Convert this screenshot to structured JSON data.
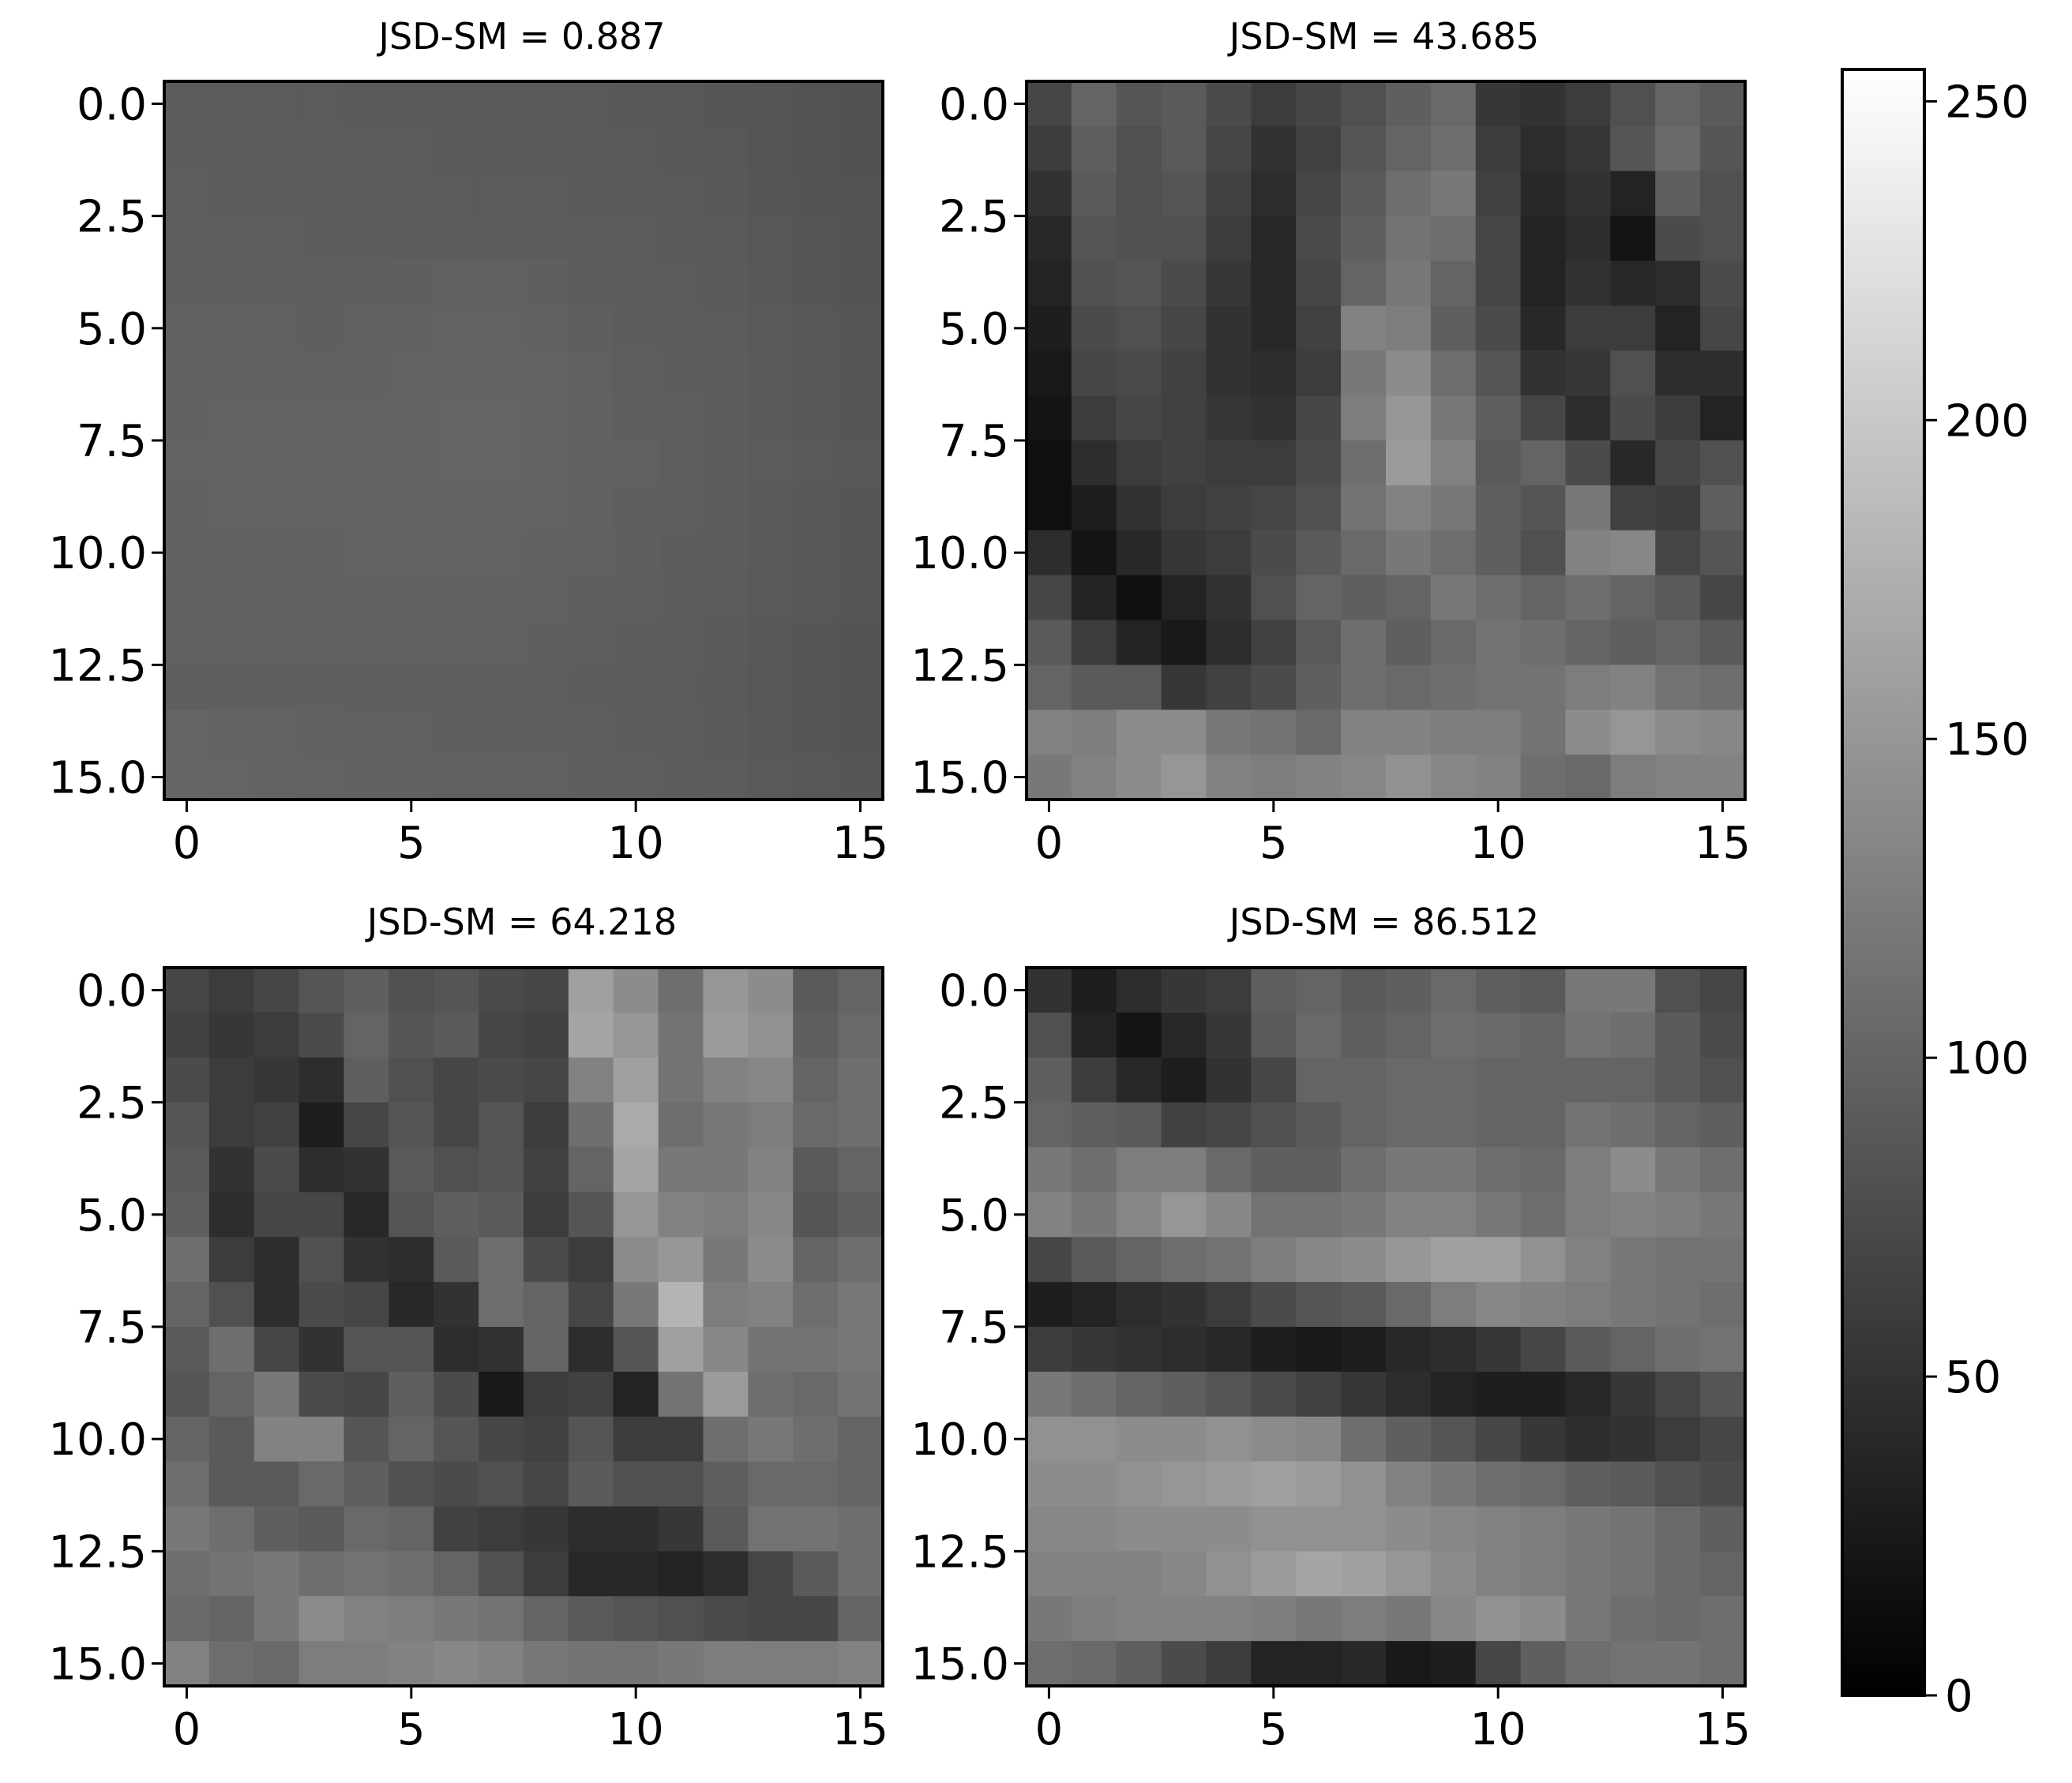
{
  "chart_data": [
    {
      "type": "heatmap",
      "title": "JSD-SM = 0.887",
      "colormap": "gray",
      "vmin": 0,
      "vmax": 255,
      "xticks": [
        "0",
        "5",
        "10",
        "15"
      ],
      "yticks": [
        "0.0",
        "2.5",
        "5.0",
        "7.5",
        "10.0",
        "12.5",
        "15.0"
      ],
      "grid": false,
      "values": [
        [
          92,
          92,
          91,
          91,
          90,
          90,
          90,
          90,
          89,
          89,
          88,
          87,
          86,
          85,
          83,
          81
        ],
        [
          93,
          92,
          92,
          92,
          91,
          91,
          90,
          90,
          90,
          89,
          89,
          88,
          87,
          85,
          83,
          81
        ],
        [
          94,
          93,
          93,
          92,
          92,
          92,
          91,
          91,
          91,
          90,
          90,
          89,
          88,
          86,
          84,
          82
        ],
        [
          95,
          94,
          94,
          93,
          93,
          93,
          93,
          93,
          92,
          92,
          91,
          90,
          89,
          87,
          85,
          83
        ],
        [
          95,
          95,
          95,
          94,
          94,
          95,
          96,
          96,
          95,
          93,
          92,
          91,
          90,
          88,
          86,
          84
        ],
        [
          96,
          96,
          96,
          95,
          96,
          97,
          98,
          98,
          97,
          95,
          93,
          92,
          91,
          89,
          87,
          85
        ],
        [
          97,
          97,
          97,
          97,
          97,
          98,
          99,
          99,
          98,
          96,
          94,
          93,
          92,
          90,
          88,
          86
        ],
        [
          97,
          98,
          98,
          98,
          98,
          99,
          100,
          100,
          99,
          97,
          95,
          94,
          92,
          90,
          88,
          86
        ],
        [
          98,
          98,
          98,
          98,
          99,
          99,
          100,
          100,
          99,
          97,
          96,
          94,
          93,
          91,
          89,
          87
        ],
        [
          97,
          98,
          98,
          98,
          99,
          99,
          99,
          99,
          98,
          97,
          95,
          94,
          92,
          90,
          88,
          86
        ],
        [
          97,
          97,
          97,
          97,
          98,
          98,
          98,
          98,
          97,
          96,
          95,
          93,
          92,
          90,
          88,
          86
        ],
        [
          96,
          97,
          97,
          97,
          97,
          97,
          97,
          97,
          96,
          95,
          94,
          93,
          91,
          89,
          87,
          85
        ],
        [
          96,
          96,
          96,
          96,
          96,
          96,
          96,
          96,
          95,
          94,
          93,
          92,
          90,
          88,
          86,
          84
        ],
        [
          95,
          95,
          95,
          95,
          95,
          95,
          95,
          95,
          94,
          93,
          92,
          91,
          89,
          87,
          85,
          83
        ],
        [
          100,
          99,
          98,
          97,
          96,
          96,
          95,
          95,
          95,
          94,
          93,
          92,
          90,
          88,
          86,
          84
        ],
        [
          101,
          100,
          99,
          98,
          97,
          97,
          96,
          96,
          96,
          95,
          94,
          93,
          91,
          89,
          87,
          85
        ]
      ]
    },
    {
      "type": "heatmap",
      "title": "JSD-SM = 43.685",
      "colormap": "gray",
      "vmin": 0,
      "vmax": 255,
      "xticks": [
        "0",
        "5",
        "10",
        "15"
      ],
      "yticks": [
        "0.0",
        "2.5",
        "5.0",
        "7.5",
        "10.0",
        "12.5",
        "15.0"
      ],
      "grid": false,
      "values": [
        [
          70,
          100,
          85,
          90,
          75,
          60,
          70,
          80,
          95,
          105,
          55,
          50,
          60,
          80,
          100,
          90
        ],
        [
          60,
          95,
          80,
          90,
          70,
          50,
          65,
          85,
          100,
          110,
          60,
          45,
          55,
          85,
          105,
          85
        ],
        [
          50,
          90,
          80,
          85,
          65,
          45,
          70,
          90,
          110,
          120,
          65,
          40,
          50,
          35,
          95,
          80
        ],
        [
          40,
          85,
          80,
          80,
          60,
          40,
          75,
          95,
          115,
          110,
          70,
          35,
          45,
          20,
          75,
          80
        ],
        [
          35,
          80,
          85,
          75,
          55,
          40,
          70,
          100,
          120,
          100,
          70,
          35,
          50,
          40,
          45,
          75
        ],
        [
          30,
          75,
          80,
          70,
          50,
          40,
          65,
          130,
          125,
          95,
          75,
          40,
          60,
          60,
          35,
          70
        ],
        [
          25,
          70,
          75,
          65,
          50,
          45,
          60,
          120,
          140,
          110,
          85,
          50,
          55,
          80,
          45,
          45
        ],
        [
          20,
          60,
          70,
          65,
          55,
          50,
          70,
          125,
          150,
          120,
          95,
          70,
          45,
          75,
          60,
          35
        ],
        [
          15,
          45,
          60,
          65,
          60,
          60,
          75,
          110,
          155,
          130,
          90,
          100,
          75,
          40,
          70,
          80
        ],
        [
          15,
          30,
          50,
          60,
          65,
          70,
          80,
          115,
          130,
          120,
          95,
          85,
          120,
          65,
          60,
          95
        ],
        [
          45,
          20,
          40,
          55,
          60,
          75,
          90,
          105,
          120,
          110,
          95,
          80,
          130,
          135,
          70,
          85
        ],
        [
          70,
          35,
          15,
          35,
          50,
          80,
          100,
          95,
          100,
          120,
          110,
          100,
          110,
          100,
          90,
          70
        ],
        [
          90,
          60,
          35,
          25,
          45,
          65,
          90,
          110,
          95,
          105,
          115,
          110,
          100,
          95,
          100,
          90
        ],
        [
          100,
          90,
          90,
          55,
          65,
          75,
          95,
          110,
          105,
          110,
          115,
          115,
          125,
          130,
          115,
          110
        ],
        [
          130,
          125,
          140,
          140,
          120,
          115,
          105,
          130,
          130,
          125,
          125,
          115,
          140,
          150,
          140,
          135
        ],
        [
          120,
          130,
          140,
          150,
          130,
          125,
          130,
          135,
          145,
          135,
          130,
          110,
          105,
          125,
          130,
          130
        ]
      ]
    },
    {
      "type": "heatmap",
      "title": "JSD-SM = 64.218",
      "colormap": "gray",
      "vmin": 0,
      "vmax": 255,
      "xticks": [
        "0",
        "5",
        "10",
        "15"
      ],
      "yticks": [
        "0.0",
        "2.5",
        "5.0",
        "7.5",
        "10.0",
        "12.5",
        "15.0"
      ],
      "grid": false,
      "values": [
        [
          70,
          60,
          70,
          85,
          95,
          80,
          85,
          75,
          70,
          160,
          140,
          110,
          150,
          140,
          90,
          100
        ],
        [
          65,
          55,
          60,
          75,
          100,
          85,
          90,
          70,
          65,
          165,
          150,
          115,
          155,
          145,
          95,
          105
        ],
        [
          75,
          60,
          55,
          45,
          95,
          80,
          70,
          75,
          70,
          130,
          160,
          115,
          130,
          135,
          100,
          110
        ],
        [
          85,
          60,
          65,
          30,
          70,
          85,
          70,
          85,
          60,
          110,
          170,
          110,
          120,
          125,
          105,
          110
        ],
        [
          90,
          50,
          75,
          45,
          50,
          90,
          80,
          85,
          65,
          100,
          165,
          120,
          120,
          130,
          90,
          100
        ],
        [
          95,
          45,
          70,
          70,
          40,
          85,
          95,
          90,
          60,
          85,
          150,
          130,
          125,
          135,
          85,
          95
        ],
        [
          110,
          60,
          45,
          80,
          50,
          45,
          90,
          110,
          75,
          60,
          140,
          150,
          120,
          140,
          100,
          110
        ],
        [
          100,
          80,
          45,
          75,
          70,
          40,
          50,
          110,
          100,
          70,
          120,
          180,
          125,
          130,
          110,
          120
        ],
        [
          90,
          110,
          70,
          50,
          85,
          85,
          45,
          50,
          100,
          45,
          85,
          160,
          135,
          115,
          115,
          120
        ],
        [
          85,
          100,
          120,
          75,
          70,
          95,
          75,
          25,
          60,
          65,
          35,
          115,
          155,
          110,
          105,
          115
        ],
        [
          100,
          90,
          130,
          130,
          85,
          100,
          85,
          70,
          65,
          85,
          60,
          60,
          110,
          120,
          110,
          100
        ],
        [
          110,
          90,
          90,
          105,
          95,
          80,
          75,
          80,
          70,
          90,
          80,
          80,
          95,
          105,
          105,
          100
        ],
        [
          120,
          110,
          95,
          90,
          105,
          100,
          65,
          60,
          55,
          45,
          45,
          55,
          90,
          115,
          115,
          110
        ],
        [
          110,
          115,
          120,
          110,
          115,
          110,
          100,
          80,
          60,
          40,
          40,
          35,
          45,
          70,
          90,
          110
        ],
        [
          105,
          100,
          120,
          140,
          130,
          125,
          120,
          115,
          100,
          90,
          85,
          80,
          75,
          70,
          70,
          100
        ],
        [
          130,
          110,
          105,
          125,
          125,
          130,
          135,
          130,
          120,
          115,
          115,
          120,
          125,
          125,
          125,
          130
        ]
      ]
    },
    {
      "type": "heatmap",
      "title": "JSD-SM = 86.512",
      "colormap": "gray",
      "vmin": 0,
      "vmax": 255,
      "xticks": [
        "0",
        "5",
        "10",
        "15"
      ],
      "yticks": [
        "0.0",
        "2.5",
        "5.0",
        "7.5",
        "10.0",
        "12.5",
        "15.0"
      ],
      "grid": false,
      "values": [
        [
          50,
          30,
          45,
          55,
          60,
          95,
          100,
          90,
          95,
          105,
          95,
          90,
          120,
          120,
          80,
          70
        ],
        [
          80,
          35,
          20,
          40,
          55,
          90,
          105,
          95,
          100,
          110,
          105,
          100,
          115,
          110,
          90,
          75
        ],
        [
          95,
          60,
          40,
          30,
          50,
          70,
          100,
          100,
          105,
          105,
          100,
          100,
          100,
          100,
          90,
          80
        ],
        [
          100,
          95,
          90,
          65,
          70,
          80,
          90,
          100,
          105,
          105,
          100,
          100,
          115,
          110,
          100,
          95
        ],
        [
          120,
          110,
          125,
          125,
          105,
          95,
          95,
          110,
          120,
          120,
          110,
          105,
          125,
          140,
          120,
          110
        ],
        [
          130,
          120,
          135,
          150,
          135,
          115,
          115,
          120,
          130,
          130,
          120,
          110,
          125,
          130,
          125,
          120
        ],
        [
          70,
          90,
          100,
          110,
          115,
          125,
          135,
          140,
          150,
          160,
          160,
          145,
          130,
          120,
          115,
          115
        ],
        [
          30,
          35,
          45,
          50,
          60,
          75,
          85,
          90,
          105,
          125,
          135,
          130,
          125,
          120,
          115,
          110
        ],
        [
          60,
          55,
          50,
          45,
          40,
          30,
          25,
          30,
          40,
          45,
          55,
          70,
          90,
          100,
          110,
          115
        ],
        [
          120,
          110,
          100,
          95,
          85,
          75,
          65,
          55,
          45,
          35,
          30,
          30,
          40,
          55,
          70,
          85
        ],
        [
          145,
          145,
          140,
          140,
          145,
          140,
          135,
          110,
          95,
          85,
          70,
          55,
          45,
          50,
          60,
          70
        ],
        [
          140,
          140,
          145,
          150,
          155,
          160,
          155,
          145,
          130,
          120,
          110,
          105,
          95,
          90,
          80,
          75
        ],
        [
          135,
          135,
          140,
          140,
          140,
          145,
          145,
          145,
          140,
          135,
          130,
          125,
          120,
          115,
          105,
          95
        ],
        [
          130,
          130,
          130,
          135,
          145,
          155,
          165,
          160,
          150,
          140,
          130,
          125,
          120,
          115,
          105,
          100
        ],
        [
          120,
          125,
          130,
          130,
          130,
          125,
          120,
          125,
          120,
          135,
          145,
          140,
          120,
          110,
          105,
          110
        ],
        [
          110,
          105,
          95,
          75,
          60,
          35,
          35,
          40,
          25,
          30,
          70,
          95,
          110,
          115,
          115,
          110
        ]
      ]
    }
  ],
  "colorbar": {
    "colormap": "gray",
    "min": 0,
    "max": 255,
    "ticks": [
      0,
      50,
      100,
      150,
      200,
      250
    ],
    "tick_labels": [
      "0",
      "50",
      "100",
      "150",
      "200",
      "250"
    ]
  }
}
